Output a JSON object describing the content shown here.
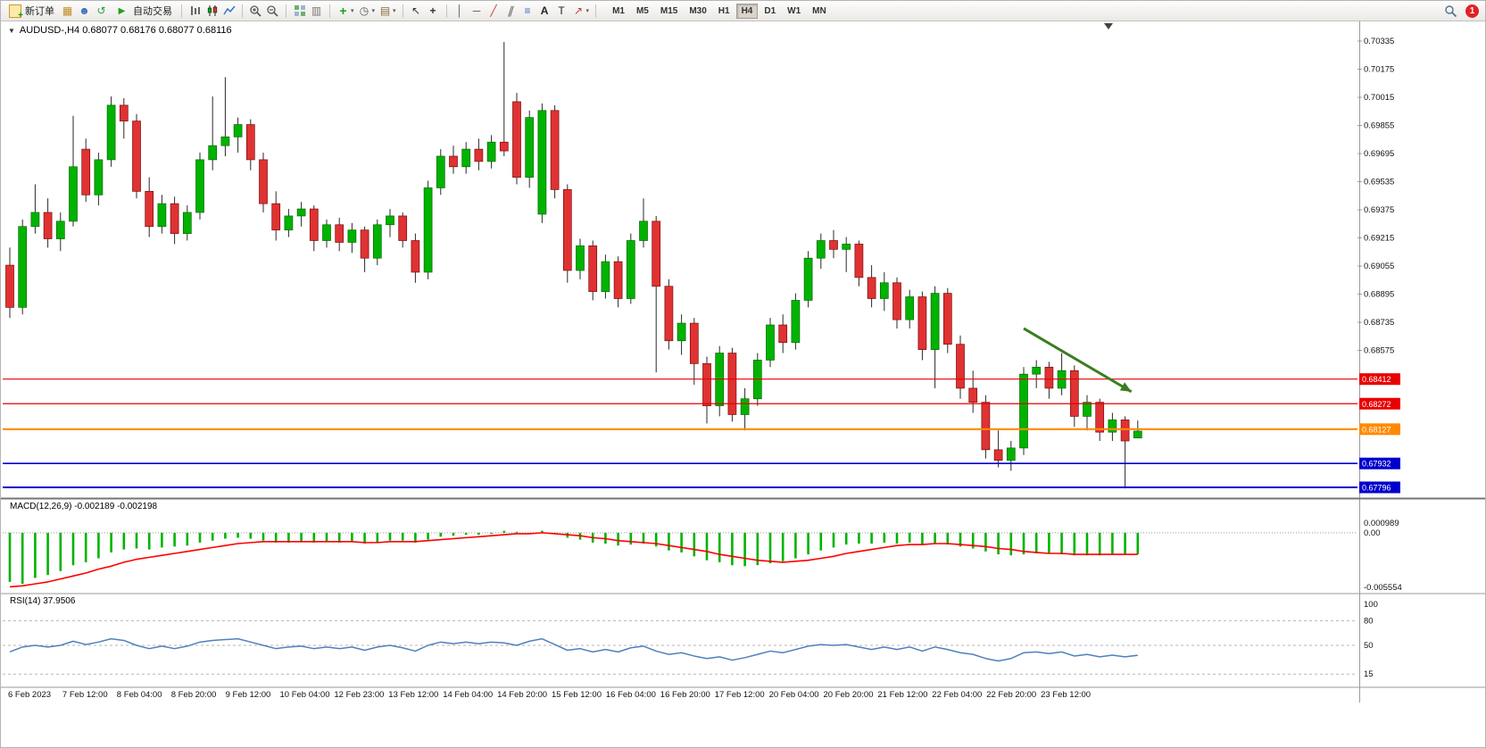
{
  "toolbar": {
    "new_order_label": "新订单",
    "autotrading_label": "自动交易",
    "timeframes": [
      "M1",
      "M5",
      "M15",
      "M30",
      "H1",
      "H4",
      "D1",
      "W1",
      "MN"
    ],
    "active_timeframe": "H4",
    "notification_count": "1",
    "icons": [
      "new-order",
      "chart-window",
      "profile",
      "refresh",
      "autotrading",
      "bar-chart",
      "candlestick-chart",
      "line-chart",
      "zoom-in",
      "zoom-out",
      "tile-windows",
      "cascade-windows",
      "indicators",
      "periods",
      "templates",
      "cursor",
      "crosshair",
      "vertical-line",
      "horizontal-line",
      "trendline",
      "equidistant-channel",
      "fibonacci",
      "text",
      "text-label",
      "arrow-tools",
      "search",
      "notification"
    ]
  },
  "chart": {
    "header": "AUDUSD-,H4 0.68077 0.68176 0.68077 0.68116",
    "symbol": "AUDUSD-",
    "timeframe": "H4"
  },
  "indicators": {
    "macd": {
      "label": "MACD(12,26,9) -0.002189 -0.002198",
      "scale": [
        "0.000989",
        "0.00",
        "-0.005554"
      ]
    },
    "rsi": {
      "label": "RSI(14) 37.9506",
      "scale": [
        "100",
        "80",
        "50",
        "15"
      ]
    }
  },
  "price_axis": {
    "ticks": [
      "0.70335",
      "0.70175",
      "0.70015",
      "0.69855",
      "0.69695",
      "0.69535",
      "0.69375",
      "0.69215",
      "0.69055",
      "0.68895",
      "0.68735",
      "0.68575"
    ]
  },
  "levels": [
    {
      "label": "0.68412",
      "value": 0.68412,
      "color": "#e80000",
      "width": 1.2
    },
    {
      "label": "0.68272",
      "value": 0.68272,
      "color": "#e80000",
      "width": 1.2
    },
    {
      "label": "0.68127",
      "value": 0.68127,
      "color": "#ff8a00",
      "width": 2.2
    },
    {
      "label": "0.67932",
      "value": 0.67932,
      "color": "#0000cd",
      "width": 1.6
    },
    {
      "label": "0.67796",
      "value": 0.67796,
      "color": "#0000cd",
      "width": 2.0
    }
  ],
  "x_axis": {
    "labels": [
      "6 Feb 2023",
      "7 Feb 12:00",
      "8 Feb 04:00",
      "8 Feb 20:00",
      "9 Feb 12:00",
      "10 Feb 04:00",
      "12 Feb 23:00",
      "13 Feb 12:00",
      "14 Feb 04:00",
      "14 Feb 20:00",
      "15 Feb 12:00",
      "16 Feb 04:00",
      "16 Feb 20:00",
      "17 Feb 12:00",
      "20 Feb 04:00",
      "20 Feb 20:00",
      "21 Feb 12:00",
      "22 Feb 04:00",
      "22 Feb 20:00",
      "23 Feb 12:00"
    ]
  },
  "chart_data": {
    "type": "candlestick",
    "symbol": "AUDUSD",
    "timeframe": "H4",
    "ylim": [
      0.67796,
      0.70335
    ],
    "colors": {
      "bull": "#00b300",
      "bear": "#e03232",
      "wick": "#2a2a2a",
      "macd_hist": "#00b300",
      "macd_signal": "#ff0000",
      "rsi_line": "#4f81bd"
    },
    "ohlc": [
      [
        0.6906,
        0.6916,
        0.6876,
        0.6882
      ],
      [
        0.6882,
        0.6932,
        0.6878,
        0.6928
      ],
      [
        0.6928,
        0.6952,
        0.6924,
        0.6936
      ],
      [
        0.6936,
        0.6944,
        0.6916,
        0.6921
      ],
      [
        0.6921,
        0.6936,
        0.6914,
        0.6931
      ],
      [
        0.6931,
        0.6991,
        0.6928,
        0.6962
      ],
      [
        0.6972,
        0.6978,
        0.6942,
        0.6946
      ],
      [
        0.6946,
        0.697,
        0.694,
        0.6966
      ],
      [
        0.6966,
        0.7002,
        0.6962,
        0.6997
      ],
      [
        0.6997,
        0.7001,
        0.6978,
        0.6988
      ],
      [
        0.6988,
        0.6992,
        0.6944,
        0.6948
      ],
      [
        0.6948,
        0.6956,
        0.6922,
        0.6928
      ],
      [
        0.6928,
        0.6946,
        0.6924,
        0.6941
      ],
      [
        0.6941,
        0.6945,
        0.6918,
        0.6924
      ],
      [
        0.6924,
        0.694,
        0.692,
        0.6936
      ],
      [
        0.6936,
        0.697,
        0.6932,
        0.6966
      ],
      [
        0.6966,
        0.7002,
        0.696,
        0.6974
      ],
      [
        0.6974,
        0.7013,
        0.6968,
        0.6979
      ],
      [
        0.6979,
        0.699,
        0.697,
        0.6986
      ],
      [
        0.6986,
        0.6989,
        0.696,
        0.6966
      ],
      [
        0.6966,
        0.697,
        0.6936,
        0.6941
      ],
      [
        0.6941,
        0.6948,
        0.692,
        0.6926
      ],
      [
        0.6926,
        0.6938,
        0.6922,
        0.6934
      ],
      [
        0.6934,
        0.6942,
        0.6928,
        0.6938
      ],
      [
        0.6938,
        0.694,
        0.6914,
        0.692
      ],
      [
        0.692,
        0.6932,
        0.6916,
        0.6929
      ],
      [
        0.6929,
        0.6933,
        0.6914,
        0.6919
      ],
      [
        0.6919,
        0.693,
        0.6913,
        0.6926
      ],
      [
        0.6926,
        0.6928,
        0.6902,
        0.691
      ],
      [
        0.691,
        0.6932,
        0.6906,
        0.6929
      ],
      [
        0.6929,
        0.6938,
        0.6922,
        0.6934
      ],
      [
        0.6934,
        0.6936,
        0.6916,
        0.692
      ],
      [
        0.692,
        0.6924,
        0.6896,
        0.6902
      ],
      [
        0.6902,
        0.6954,
        0.6898,
        0.695
      ],
      [
        0.695,
        0.6972,
        0.6946,
        0.6968
      ],
      [
        0.6968,
        0.6974,
        0.6958,
        0.6962
      ],
      [
        0.6962,
        0.6976,
        0.6958,
        0.6972
      ],
      [
        0.6972,
        0.6978,
        0.696,
        0.6965
      ],
      [
        0.6965,
        0.698,
        0.6961,
        0.6976
      ],
      [
        0.6976,
        0.7033,
        0.6968,
        0.6971
      ],
      [
        0.6999,
        0.7004,
        0.6952,
        0.6956
      ],
      [
        0.6956,
        0.6994,
        0.695,
        0.699
      ],
      [
        0.6935,
        0.6998,
        0.693,
        0.6994
      ],
      [
        0.6994,
        0.6997,
        0.6944,
        0.6949
      ],
      [
        0.6949,
        0.6952,
        0.6896,
        0.6903
      ],
      [
        0.6903,
        0.6921,
        0.6898,
        0.6917
      ],
      [
        0.6917,
        0.692,
        0.6886,
        0.6891
      ],
      [
        0.6891,
        0.6912,
        0.6887,
        0.6908
      ],
      [
        0.6908,
        0.6911,
        0.6882,
        0.6887
      ],
      [
        0.6887,
        0.6924,
        0.6884,
        0.692
      ],
      [
        0.692,
        0.6944,
        0.6916,
        0.6931
      ],
      [
        0.6931,
        0.6934,
        0.6845,
        0.6894
      ],
      [
        0.6894,
        0.6898,
        0.6858,
        0.6863
      ],
      [
        0.6863,
        0.6878,
        0.6855,
        0.6873
      ],
      [
        0.6873,
        0.6876,
        0.6838,
        0.685
      ],
      [
        0.685,
        0.6854,
        0.6816,
        0.6826
      ],
      [
        0.6826,
        0.686,
        0.682,
        0.6856
      ],
      [
        0.6856,
        0.6859,
        0.6817,
        0.6821
      ],
      [
        0.6821,
        0.6836,
        0.6812,
        0.683
      ],
      [
        0.683,
        0.6856,
        0.6826,
        0.6852
      ],
      [
        0.6852,
        0.6876,
        0.6848,
        0.6872
      ],
      [
        0.6872,
        0.6878,
        0.6856,
        0.6862
      ],
      [
        0.6862,
        0.689,
        0.6858,
        0.6886
      ],
      [
        0.6886,
        0.6914,
        0.6882,
        0.691
      ],
      [
        0.691,
        0.6924,
        0.6904,
        0.692
      ],
      [
        0.692,
        0.6926,
        0.691,
        0.6915
      ],
      [
        0.6915,
        0.6922,
        0.6902,
        0.6918
      ],
      [
        0.6918,
        0.692,
        0.6894,
        0.6899
      ],
      [
        0.6899,
        0.6906,
        0.6882,
        0.6887
      ],
      [
        0.6887,
        0.6902,
        0.688,
        0.6896
      ],
      [
        0.6896,
        0.6899,
        0.687,
        0.6875
      ],
      [
        0.6875,
        0.6892,
        0.687,
        0.6888
      ],
      [
        0.6888,
        0.6891,
        0.6852,
        0.6858
      ],
      [
        0.6858,
        0.6894,
        0.6836,
        0.689
      ],
      [
        0.689,
        0.6893,
        0.6856,
        0.6861
      ],
      [
        0.6861,
        0.6866,
        0.683,
        0.6836
      ],
      [
        0.6836,
        0.6846,
        0.6822,
        0.6828
      ],
      [
        0.6828,
        0.6832,
        0.6796,
        0.6801
      ],
      [
        0.6801,
        0.6812,
        0.6791,
        0.6795
      ],
      [
        0.6795,
        0.6806,
        0.6789,
        0.6802
      ],
      [
        0.6802,
        0.6848,
        0.6798,
        0.6844
      ],
      [
        0.6844,
        0.6852,
        0.6836,
        0.6848
      ],
      [
        0.6848,
        0.6851,
        0.683,
        0.6836
      ],
      [
        0.6836,
        0.6856,
        0.6832,
        0.6846
      ],
      [
        0.6846,
        0.6849,
        0.6814,
        0.682
      ],
      [
        0.682,
        0.6832,
        0.6812,
        0.6828
      ],
      [
        0.6828,
        0.683,
        0.6806,
        0.6811
      ],
      [
        0.6811,
        0.6822,
        0.6806,
        0.6818
      ],
      [
        0.6818,
        0.682,
        0.6779,
        0.6806
      ],
      [
        0.68077,
        0.68176,
        0.68077,
        0.68116
      ]
    ],
    "macd": {
      "ylim": [
        -0.005554,
        0.000989
      ],
      "histogram": [
        -0.005,
        -0.0052,
        -0.0046,
        -0.0043,
        -0.0039,
        -0.0033,
        -0.003,
        -0.0026,
        -0.002,
        -0.0017,
        -0.0016,
        -0.0017,
        -0.0015,
        -0.0014,
        -0.0013,
        -0.001,
        -0.0008,
        -0.0006,
        -0.0005,
        -0.0006,
        -0.0008,
        -0.001,
        -0.001,
        -0.0009,
        -0.001,
        -0.0009,
        -0.001,
        -0.0009,
        -0.0011,
        -0.001,
        -0.0008,
        -0.0008,
        -0.001,
        -0.0007,
        -0.0004,
        -0.0003,
        -0.0002,
        -0.0002,
        -0.0001,
        0.0002,
        0.0001,
        0.0,
        0.0002,
        -0.0001,
        -0.0005,
        -0.0007,
        -0.001,
        -0.0011,
        -0.0013,
        -0.0012,
        -0.0011,
        -0.0014,
        -0.0018,
        -0.002,
        -0.0024,
        -0.0028,
        -0.003,
        -0.0033,
        -0.0034,
        -0.0033,
        -0.0031,
        -0.0029,
        -0.0026,
        -0.0022,
        -0.0018,
        -0.0015,
        -0.0012,
        -0.0011,
        -0.0011,
        -0.001,
        -0.0011,
        -0.001,
        -0.0012,
        -0.0011,
        -0.0012,
        -0.0014,
        -0.0016,
        -0.0019,
        -0.0022,
        -0.0023,
        -0.0022,
        -0.0021,
        -0.0021,
        -0.0022,
        -0.0023,
        -0.0023,
        -0.0023,
        -0.0022,
        -0.0022,
        -0.002189
      ],
      "signal": [
        -0.0055,
        -0.0054,
        -0.0052,
        -0.005,
        -0.0047,
        -0.0044,
        -0.0041,
        -0.0037,
        -0.0034,
        -0.003,
        -0.0027,
        -0.0025,
        -0.0023,
        -0.0021,
        -0.0019,
        -0.0017,
        -0.0015,
        -0.0013,
        -0.0011,
        -0.001,
        -0.0009,
        -0.0009,
        -0.0009,
        -0.0009,
        -0.0009,
        -0.0009,
        -0.0009,
        -0.0009,
        -0.001,
        -0.001,
        -0.0009,
        -0.0009,
        -0.0009,
        -0.0008,
        -0.0007,
        -0.0006,
        -0.0005,
        -0.0004,
        -0.0003,
        -0.0002,
        -0.0001,
        -0.0001,
        0.0,
        -0.0001,
        -0.0002,
        -0.0003,
        -0.0005,
        -0.0006,
        -0.0008,
        -0.0009,
        -0.001,
        -0.0011,
        -0.0013,
        -0.0015,
        -0.0017,
        -0.0019,
        -0.0022,
        -0.0024,
        -0.0026,
        -0.0028,
        -0.0029,
        -0.003,
        -0.0029,
        -0.0028,
        -0.0026,
        -0.0024,
        -0.0021,
        -0.0019,
        -0.0017,
        -0.0015,
        -0.0013,
        -0.0012,
        -0.0012,
        -0.0011,
        -0.0011,
        -0.0012,
        -0.0013,
        -0.0014,
        -0.0016,
        -0.0017,
        -0.0019,
        -0.002,
        -0.0021,
        -0.0021,
        -0.0022,
        -0.0022,
        -0.0022,
        -0.0022,
        -0.0022,
        -0.002198
      ]
    },
    "rsi": {
      "ylim": [
        0,
        100
      ],
      "levels": [
        80,
        50,
        15
      ],
      "values": [
        42,
        48,
        50,
        48,
        50,
        55,
        51,
        54,
        58,
        56,
        50,
        46,
        49,
        46,
        49,
        54,
        56,
        57,
        58,
        54,
        50,
        46,
        48,
        49,
        46,
        48,
        46,
        48,
        44,
        48,
        50,
        47,
        43,
        50,
        54,
        52,
        54,
        52,
        54,
        53,
        50,
        55,
        58,
        51,
        44,
        46,
        42,
        45,
        42,
        47,
        49,
        43,
        39,
        41,
        37,
        34,
        36,
        32,
        35,
        39,
        43,
        41,
        45,
        49,
        51,
        50,
        51,
        48,
        45,
        48,
        45,
        48,
        43,
        48,
        45,
        41,
        39,
        34,
        31,
        34,
        41,
        42,
        40,
        42,
        37,
        39,
        36,
        38,
        36,
        37.95
      ]
    },
    "annotations": [
      {
        "type": "arrow",
        "color": "#3a7d1e",
        "from": {
          "bar": 80,
          "price": 0.687
        },
        "to": {
          "bar": 88.5,
          "price": 0.6834
        }
      }
    ]
  }
}
